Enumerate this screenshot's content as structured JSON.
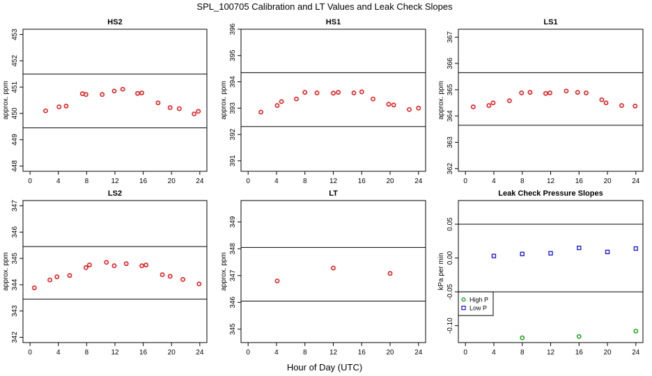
{
  "figure": {
    "title": "SPL_100705  Calibration and LT Values and Leak Check Slopes",
    "xlabel": "Hour of Day (UTC)"
  },
  "colors": {
    "red": "#e41a1c",
    "green": "#1ea51e",
    "blue": "#1f1fd6",
    "axis": "#000000"
  },
  "chart_data": [
    {
      "type": "scatter",
      "title": "HS2",
      "ylabel": "approx. ppm",
      "xlim": [
        -1,
        25
      ],
      "ylim": [
        447.8,
        453.2
      ],
      "xticks": [
        "0",
        "4",
        "8",
        "12",
        "16",
        "20",
        "24"
      ],
      "yticks": [
        "448",
        "449",
        "450",
        "451",
        "452",
        "453"
      ],
      "hlines": [
        449.45,
        451.5
      ],
      "series": [
        {
          "color": "red",
          "x": [
            2.2,
            4.1,
            5.1,
            7.4,
            7.9,
            10.2,
            11.9,
            13.1,
            15.2,
            15.8,
            18.1,
            19.8,
            21.1,
            23.2,
            23.8
          ],
          "y": [
            450.1,
            450.25,
            450.28,
            450.75,
            450.72,
            450.72,
            450.85,
            450.92,
            450.76,
            450.78,
            450.4,
            450.22,
            450.18,
            449.98,
            450.08
          ]
        }
      ]
    },
    {
      "type": "scatter",
      "title": "HS1",
      "ylabel": "approx. ppm",
      "xlim": [
        -1,
        25
      ],
      "ylim": [
        390.6,
        396
      ],
      "xticks": [
        "0",
        "4",
        "8",
        "12",
        "16",
        "20",
        "24"
      ],
      "yticks": [
        "391",
        "392",
        "393",
        "394",
        "395",
        "396"
      ],
      "hlines": [
        392.3,
        394.35
      ],
      "series": [
        {
          "color": "red",
          "x": [
            1.8,
            4.1,
            4.7,
            6.8,
            8.0,
            9.7,
            12.0,
            12.7,
            14.9,
            16.0,
            17.6,
            19.8,
            20.5,
            22.7,
            24.0
          ],
          "y": [
            392.85,
            393.1,
            393.25,
            393.35,
            393.6,
            393.58,
            393.57,
            393.6,
            393.58,
            393.62,
            393.35,
            393.15,
            393.12,
            392.95,
            393.0
          ]
        }
      ]
    },
    {
      "type": "scatter",
      "title": "LS1",
      "ylabel": "approx. ppm",
      "xlim": [
        -1,
        25
      ],
      "ylim": [
        361.9,
        367.3
      ],
      "xticks": [
        "0",
        "4",
        "8",
        "12",
        "16",
        "20",
        "24"
      ],
      "yticks": [
        "362",
        "363",
        "364",
        "365",
        "366",
        "367"
      ],
      "hlines": [
        363.65,
        365.65
      ],
      "series": [
        {
          "color": "red",
          "x": [
            1.1,
            3.3,
            3.9,
            6.2,
            7.9,
            9.1,
            11.3,
            11.9,
            14.2,
            15.8,
            17.0,
            19.2,
            19.8,
            22.0,
            23.9
          ],
          "y": [
            364.35,
            364.4,
            364.5,
            364.58,
            364.88,
            364.9,
            364.86,
            364.88,
            364.95,
            364.9,
            364.88,
            364.62,
            364.5,
            364.4,
            364.38
          ]
        }
      ]
    },
    {
      "type": "scatter",
      "title": "LS2",
      "ylabel": "approx. ppm",
      "xlim": [
        -1,
        25
      ],
      "ylim": [
        341.8,
        347.2
      ],
      "xticks": [
        "0",
        "4",
        "8",
        "12",
        "16",
        "20",
        "24"
      ],
      "yticks": [
        "342",
        "343",
        "344",
        "345",
        "346",
        "347"
      ],
      "hlines": [
        343.45,
        345.45
      ],
      "series": [
        {
          "color": "red",
          "x": [
            0.6,
            2.8,
            3.8,
            5.6,
            7.9,
            8.4,
            10.8,
            11.9,
            13.6,
            15.8,
            16.4,
            18.7,
            19.8,
            21.6,
            23.9
          ],
          "y": [
            343.88,
            344.18,
            344.3,
            344.35,
            344.65,
            344.75,
            344.85,
            344.72,
            344.8,
            344.72,
            344.75,
            344.38,
            344.32,
            344.2,
            344.03
          ]
        }
      ]
    },
    {
      "type": "scatter",
      "title": "LT",
      "ylabel": "approx. ppm",
      "xlim": [
        -1,
        25
      ],
      "ylim": [
        344.5,
        349.8
      ],
      "xticks": [
        "0",
        "4",
        "8",
        "12",
        "16",
        "20",
        "24"
      ],
      "yticks": [
        "345",
        "346",
        "347",
        "348",
        "349"
      ],
      "hlines": [
        346.05,
        348.05
      ],
      "series": [
        {
          "color": "red",
          "x": [
            4.1,
            12.0,
            20.0
          ],
          "y": [
            346.8,
            347.28,
            347.08
          ]
        }
      ]
    },
    {
      "type": "scatter",
      "title": "Leak Check Pressure Slopes",
      "ylabel": "kPa per min",
      "xlim": [
        -1,
        25
      ],
      "ylim": [
        -0.125,
        0.085
      ],
      "xticks": [
        "0",
        "4",
        "8",
        "12",
        "16",
        "20",
        "24"
      ],
      "yticks": [
        "-0.10",
        "-0.05",
        "0.00",
        "0.05"
      ],
      "hlines": [
        -0.05,
        0.05
      ],
      "legend": {
        "position": "left",
        "entries": [
          {
            "label": "High P",
            "color": "green"
          },
          {
            "label": "Low P",
            "color": "blue"
          }
        ]
      },
      "series": [
        {
          "name": "High P",
          "color": "green",
          "x": [
            8.0,
            16.0,
            24.0
          ],
          "y": [
            -0.118,
            -0.116,
            -0.108
          ]
        },
        {
          "name": "Low P",
          "color": "blue",
          "x": [
            4.0,
            8.0,
            12.0,
            16.0,
            20.0,
            24.0
          ],
          "y": [
            0.003,
            0.006,
            0.007,
            0.015,
            0.009,
            0.014
          ]
        }
      ]
    }
  ]
}
